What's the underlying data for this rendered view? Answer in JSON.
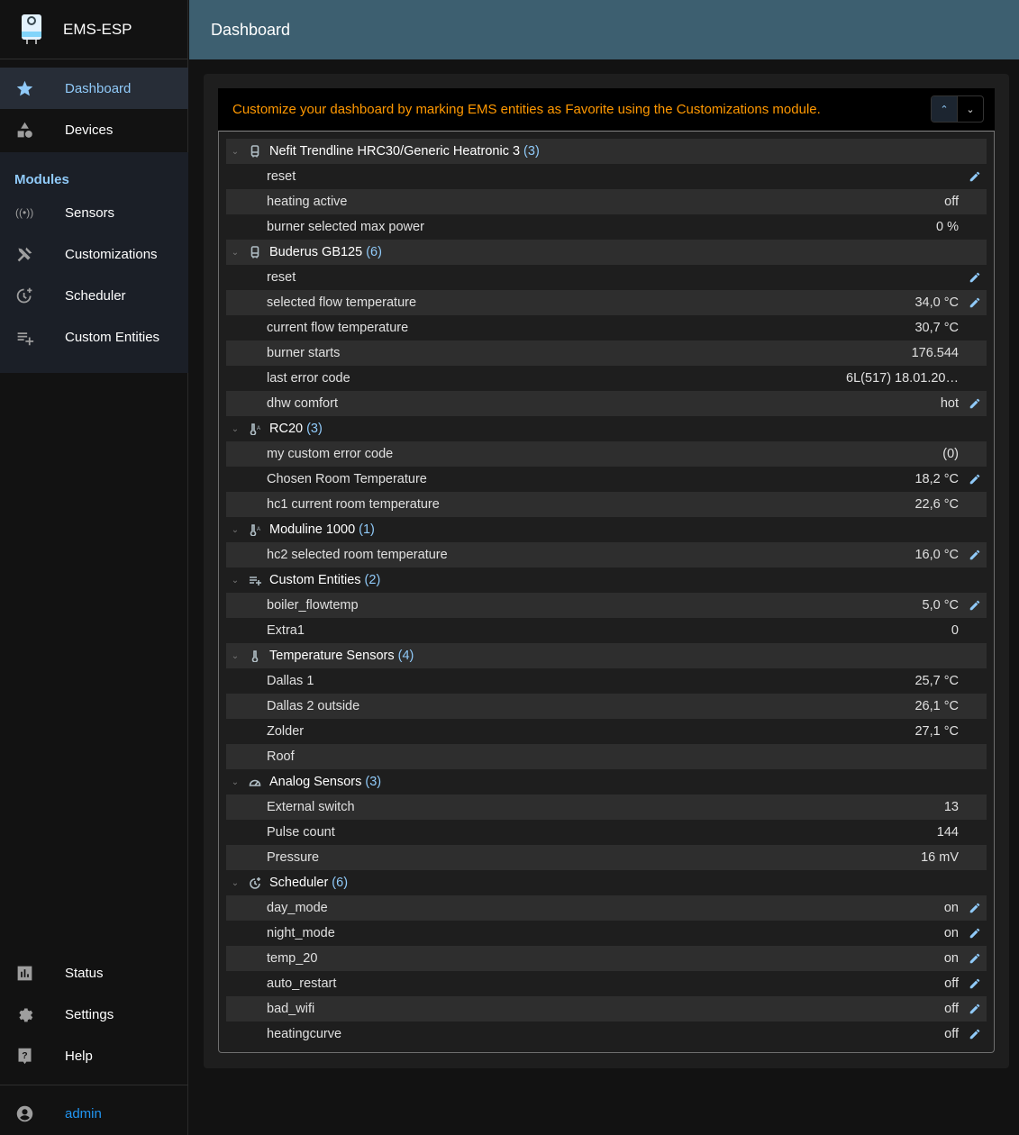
{
  "app": {
    "title": "EMS-ESP",
    "page_title": "Dashboard"
  },
  "sidebar": {
    "top": [
      {
        "label": "Dashboard",
        "icon": "star-icon",
        "active": true
      },
      {
        "label": "Devices",
        "icon": "category-icon"
      }
    ],
    "modules_heading": "Modules",
    "modules": [
      {
        "label": "Sensors",
        "icon": "sensors-icon"
      },
      {
        "label": "Customizations",
        "icon": "tools-icon"
      },
      {
        "label": "Scheduler",
        "icon": "more-time-icon"
      },
      {
        "label": "Custom Entities",
        "icon": "playlist-add-icon"
      }
    ],
    "bottom": [
      {
        "label": "Status",
        "icon": "assessment-icon"
      },
      {
        "label": "Settings",
        "icon": "gear-icon"
      },
      {
        "label": "Help",
        "icon": "help-icon"
      }
    ],
    "user": "admin"
  },
  "alert": "Customize your dashboard by marking EMS entities as Favorite using the Customizations module.",
  "colors": {
    "accent": "#90caf9",
    "alert": "#ff9800",
    "header": "#3d5f70"
  },
  "groups": [
    {
      "name": "Nefit Trendline HRC30/Generic Heatronic 3",
      "count": "(3)",
      "icon": "boiler-icon",
      "rows": [
        {
          "name": "reset",
          "value": "",
          "editable": true
        },
        {
          "name": "heating active",
          "value": "off",
          "editable": false
        },
        {
          "name": "burner selected max power",
          "value": "0 %",
          "editable": false
        }
      ]
    },
    {
      "name": "Buderus GB125",
      "count": "(6)",
      "icon": "boiler-icon",
      "rows": [
        {
          "name": "reset",
          "value": "",
          "editable": true
        },
        {
          "name": "selected flow temperature",
          "value": "34,0 °C",
          "editable": true
        },
        {
          "name": "current flow temperature",
          "value": "30,7 °C",
          "editable": false
        },
        {
          "name": "burner starts",
          "value": "176.544",
          "editable": false
        },
        {
          "name": "last error code",
          "value": "6L(517) 18.01.20…",
          "editable": false
        },
        {
          "name": "dhw comfort",
          "value": "hot",
          "editable": true
        }
      ]
    },
    {
      "name": "RC20",
      "count": "(3)",
      "icon": "thermostat-auto-icon",
      "rows": [
        {
          "name": "my custom error code",
          "value": "(0)",
          "editable": false
        },
        {
          "name": "Chosen Room Temperature",
          "value": "18,2 °C",
          "editable": true
        },
        {
          "name": "hc1 current room temperature",
          "value": "22,6 °C",
          "editable": false
        }
      ]
    },
    {
      "name": "Moduline 1000",
      "count": "(1)",
      "icon": "thermostat-auto-icon",
      "rows": [
        {
          "name": "hc2 selected room temperature",
          "value": "16,0 °C",
          "editable": true
        }
      ]
    },
    {
      "name": "Custom Entities",
      "count": "(2)",
      "icon": "playlist-add-icon",
      "rows": [
        {
          "name": "boiler_flowtemp",
          "value": "5,0 °C",
          "editable": true
        },
        {
          "name": "Extra1",
          "value": "0",
          "editable": false
        }
      ]
    },
    {
      "name": "Temperature Sensors",
      "count": "(4)",
      "icon": "thermometer-icon",
      "rows": [
        {
          "name": "Dallas 1",
          "value": "25,7 °C",
          "editable": false
        },
        {
          "name": "Dallas 2 outside",
          "value": "26,1 °C",
          "editable": false
        },
        {
          "name": "Zolder",
          "value": "27,1 °C",
          "editable": false
        },
        {
          "name": "Roof",
          "value": "",
          "editable": false
        }
      ]
    },
    {
      "name": "Analog Sensors",
      "count": "(3)",
      "icon": "gauge-icon",
      "rows": [
        {
          "name": "External switch",
          "value": "13",
          "editable": false
        },
        {
          "name": "Pulse count",
          "value": "144",
          "editable": false
        },
        {
          "name": "Pressure",
          "value": "16 mV",
          "editable": false
        }
      ]
    },
    {
      "name": "Scheduler",
      "count": "(6)",
      "icon": "more-time-icon",
      "rows": [
        {
          "name": "day_mode",
          "value": "on",
          "editable": true
        },
        {
          "name": "night_mode",
          "value": "on",
          "editable": true
        },
        {
          "name": "temp_20",
          "value": "on",
          "editable": true
        },
        {
          "name": "auto_restart",
          "value": "off",
          "editable": true
        },
        {
          "name": "bad_wifi",
          "value": "off",
          "editable": true
        },
        {
          "name": "heatingcurve",
          "value": "off",
          "editable": true
        }
      ]
    }
  ]
}
